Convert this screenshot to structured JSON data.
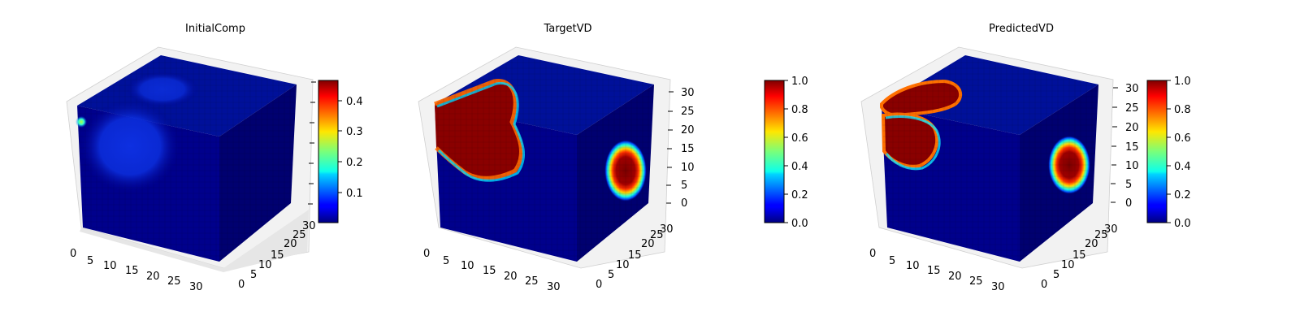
{
  "figure": {
    "panels": [
      {
        "title": "InitialComp"
      },
      {
        "title": "TargetVD"
      },
      {
        "title": "PredictedVD"
      }
    ]
  },
  "chart_data": [
    {
      "type": "heatmap",
      "title": "InitialComp",
      "projection": "3d-voxel-cube",
      "colormap": "jet",
      "axes": {
        "x": {
          "range": [
            0,
            32
          ],
          "ticks": [
            "0",
            "5",
            "10",
            "15",
            "20",
            "25",
            "30"
          ]
        },
        "y": {
          "range": [
            0,
            32
          ],
          "ticks": [
            "0",
            "5",
            "10",
            "15",
            "20",
            "25",
            "30"
          ]
        },
        "z": {
          "range": [
            0,
            32
          ],
          "ticks": []
        }
      },
      "colorbar": {
        "range": [
          0.02,
          0.46
        ],
        "ticks": [
          "0.1",
          "0.2",
          "0.3",
          "0.4"
        ]
      },
      "grid": true,
      "visible_features": [
        {
          "face": "front",
          "description": "faint diffuse patch",
          "approx_value": 0.12
        },
        {
          "face": "front",
          "description": "small bright spot on upper-left edge",
          "approx_value": 0.3
        }
      ]
    },
    {
      "type": "heatmap",
      "title": "TargetVD",
      "projection": "3d-voxel-cube",
      "colormap": "jet",
      "axes": {
        "x": {
          "range": [
            0,
            32
          ],
          "ticks": [
            "0",
            "5",
            "10",
            "15",
            "20",
            "25",
            "30"
          ]
        },
        "y": {
          "range": [
            0,
            32
          ],
          "ticks": [
            "0",
            "5",
            "10",
            "15",
            "20",
            "25",
            "30"
          ]
        },
        "z": {
          "range": [
            0,
            32
          ],
          "ticks": [
            "0",
            "5",
            "10",
            "15",
            "20",
            "25",
            "30"
          ]
        }
      },
      "colorbar": {
        "range": [
          0.0,
          1.0
        ],
        "ticks": [
          "0.0",
          "0.2",
          "0.4",
          "0.6",
          "0.8",
          "1.0"
        ]
      },
      "grid": true,
      "visible_features": [
        {
          "face": "front",
          "description": "large saturated blob upper-left",
          "approx_value": 1.0
        },
        {
          "face": "side",
          "description": "oval blob mid-height",
          "approx_value": 1.0
        }
      ]
    },
    {
      "type": "heatmap",
      "title": "PredictedVD",
      "projection": "3d-voxel-cube",
      "colormap": "jet",
      "axes": {
        "x": {
          "range": [
            0,
            32
          ],
          "ticks": [
            "0",
            "5",
            "10",
            "15",
            "20",
            "25",
            "30"
          ]
        },
        "y": {
          "range": [
            0,
            32
          ],
          "ticks": [
            "0",
            "5",
            "10",
            "15",
            "20",
            "25",
            "30"
          ]
        },
        "z": {
          "range": [
            0,
            32
          ],
          "ticks": [
            "0",
            "5",
            "10",
            "15",
            "20",
            "25",
            "30"
          ]
        }
      },
      "colorbar": {
        "range": [
          0.0,
          1.0
        ],
        "ticks": [
          "0.0",
          "0.2",
          "0.4",
          "0.6",
          "0.8",
          "1.0"
        ]
      },
      "grid": true,
      "visible_features": [
        {
          "face": "front",
          "description": "two connected saturated blobs upper-left",
          "approx_value": 1.0
        },
        {
          "face": "side",
          "description": "oval blob mid-height",
          "approx_value": 1.0
        }
      ]
    }
  ]
}
